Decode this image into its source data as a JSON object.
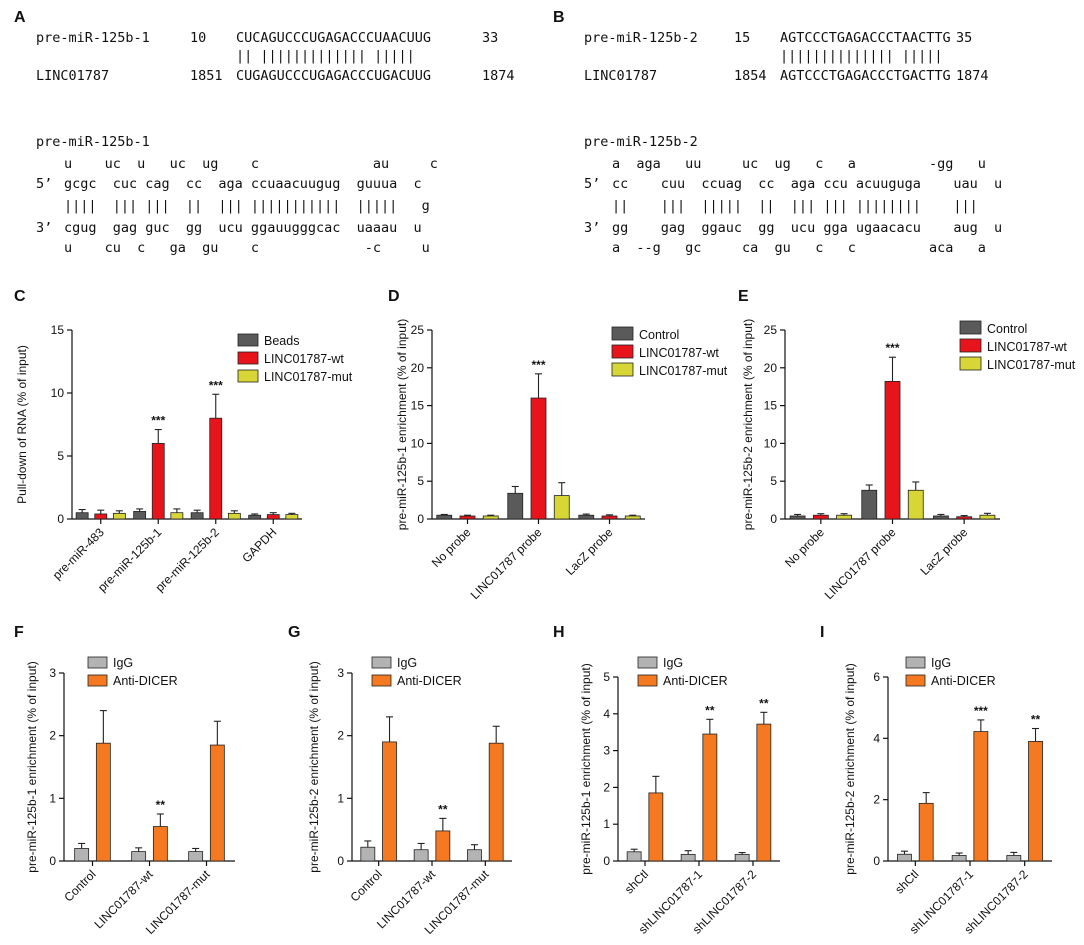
{
  "panel_labels": [
    "A",
    "B",
    "C",
    "D",
    "E",
    "F",
    "G",
    "H",
    "I"
  ],
  "sequences": {
    "A": {
      "name1": "pre-miR-125b-1",
      "start1": "10",
      "seq1": "CUCAGUCCCUGAGACCCUAACUUG",
      "end1": "33",
      "bars": "|| ||||||||||||| |||||",
      "name2": "LINC01787",
      "start2": "1851",
      "seq2": "CUGAGUCCCUGAGACCCUGACUUG",
      "end2": "1874"
    },
    "B": {
      "name1": "pre-miR-125b-2",
      "start1": "15",
      "seq1": "AGTCCCTGAGACCCTAACTTG",
      "end1": "35",
      "bars": "|||||||||||||| |||||",
      "name2": "LINC01787",
      "start2": "1854",
      "seq2": "AGTCCCTGAGACCCTGACTTG",
      "end2": "1874"
    }
  },
  "hairpins": {
    "A": {
      "title": "pre-miR-125b-1",
      "l1": "u    uc  u   uc  ug    c              au     c",
      "l2": "gcgc  cuc cag  cc  aga ccuaacuugug  guuua  c",
      "l3": "||||  ||| |||  ||  ||| |||||||||||  |||||   g",
      "l4": "cgug  gag guc  gg  ucu ggauugggcac  uaaau  u",
      "l5": "u    cu  c   ga  gu    c             -c     u",
      "p5": "5’",
      "p3": "3’"
    },
    "B": {
      "title": "pre-miR-125b-2",
      "l1": "a  aga   uu     uc  ug   c   a         -gg   u",
      "l2": "cc    cuu  ccuag  cc  aga ccu acuuguga    uau  u",
      "l3": "||    |||  |||||  ||  ||| ||| ||||||||    |||",
      "l4": "gg    gag  ggauc  gg  ucu gga ugaacacu    aug  u",
      "l5": "a  --g   gc     ca  gu   c   c         aca   a",
      "p5": "5’",
      "p3": "3’"
    }
  },
  "colors": {
    "gray": "#5a5a5a",
    "red": "#e8141c",
    "olive": "#d8d636",
    "lightgray": "#b3b3b3",
    "orange": "#f57921"
  },
  "chart_data": [
    {
      "panel": "C",
      "type": "bar",
      "ylabel": "Pull-down of RNA (% of input)",
      "ylim": [
        0,
        15
      ],
      "yticks": [
        0,
        5,
        10,
        15
      ],
      "categories": [
        "pre-miR-483",
        "pre-miR-125b-1",
        "pre-miR-125b-2",
        "GAPDH"
      ],
      "series": [
        {
          "name": "Beads",
          "color": "#5a5a5a",
          "values": [
            0.5,
            0.6,
            0.5,
            0.3
          ],
          "errors": [
            0.25,
            0.2,
            0.2,
            0.1
          ]
        },
        {
          "name": "LINC01787-wt",
          "color": "#e8141c",
          "values": [
            0.4,
            6.0,
            8.0,
            0.35
          ],
          "errors": [
            0.3,
            1.1,
            1.9,
            0.15
          ]
        },
        {
          "name": "LINC01787-mut",
          "color": "#d8d636",
          "values": [
            0.45,
            0.5,
            0.45,
            0.35
          ],
          "errors": [
            0.2,
            0.3,
            0.2,
            0.1
          ]
        }
      ],
      "annotations": [
        {
          "cat": 1,
          "series": 1,
          "text": "***"
        },
        {
          "cat": 2,
          "series": 1,
          "text": "***"
        }
      ]
    },
    {
      "panel": "D",
      "type": "bar",
      "ylabel": "pre-miR-125b-1 enrichment (% of input)",
      "ylim": [
        0,
        25
      ],
      "yticks": [
        0,
        5,
        10,
        15,
        20,
        25
      ],
      "categories": [
        "No probe",
        "LINC01787 probe",
        "LacZ probe"
      ],
      "series": [
        {
          "name": "Control",
          "color": "#5a5a5a",
          "values": [
            0.5,
            3.4,
            0.5
          ],
          "errors": [
            0.1,
            0.9,
            0.15
          ]
        },
        {
          "name": "LINC01787-wt",
          "color": "#e8141c",
          "values": [
            0.4,
            16.0,
            0.4
          ],
          "errors": [
            0.1,
            3.2,
            0.15
          ]
        },
        {
          "name": "LINC01787-mut",
          "color": "#d8d636",
          "values": [
            0.4,
            3.1,
            0.4
          ],
          "errors": [
            0.1,
            1.7,
            0.1
          ]
        }
      ],
      "annotations": [
        {
          "cat": 1,
          "series": 1,
          "text": "***"
        }
      ]
    },
    {
      "panel": "E",
      "type": "bar",
      "ylabel": "pre-miR-125b-2 enrichment (% of input)",
      "ylim": [
        0,
        25
      ],
      "yticks": [
        0,
        5,
        10,
        15,
        20,
        25
      ],
      "categories": [
        "No probe",
        "LINC01787 probe",
        "LacZ probe"
      ],
      "series": [
        {
          "name": "Control",
          "color": "#5a5a5a",
          "values": [
            0.4,
            3.8,
            0.4
          ],
          "errors": [
            0.2,
            0.7,
            0.2
          ]
        },
        {
          "name": "LINC01787-wt",
          "color": "#e8141c",
          "values": [
            0.5,
            18.2,
            0.3
          ],
          "errors": [
            0.2,
            3.2,
            0.15
          ]
        },
        {
          "name": "LINC01787-mut",
          "color": "#d8d636",
          "values": [
            0.5,
            3.8,
            0.5
          ],
          "errors": [
            0.2,
            1.1,
            0.25
          ]
        }
      ],
      "annotations": [
        {
          "cat": 1,
          "series": 1,
          "text": "***"
        }
      ]
    },
    {
      "panel": "F",
      "type": "bar",
      "ylabel": "pre-miR-125b-1 enrichment (% of input)",
      "ylim": [
        0,
        3
      ],
      "yticks": [
        0,
        1,
        2,
        3
      ],
      "categories": [
        "Control",
        "LINC01787-wt",
        "LINC01787-mut"
      ],
      "series": [
        {
          "name": "IgG",
          "color": "#b3b3b3",
          "values": [
            0.2,
            0.15,
            0.15
          ],
          "errors": [
            0.08,
            0.06,
            0.05
          ]
        },
        {
          "name": "Anti-DICER",
          "color": "#f57921",
          "values": [
            1.88,
            0.55,
            1.85
          ],
          "errors": [
            0.52,
            0.2,
            0.38
          ]
        }
      ],
      "annotations": [
        {
          "cat": 1,
          "series": 1,
          "text": "**"
        }
      ]
    },
    {
      "panel": "G",
      "type": "bar",
      "ylabel": "pre-miR-125b-2 enrichment (% of input)",
      "ylim": [
        0,
        3
      ],
      "yticks": [
        0,
        1,
        2,
        3
      ],
      "categories": [
        "Control",
        "LINC01787-wt",
        "LINC01787-mut"
      ],
      "series": [
        {
          "name": "IgG",
          "color": "#b3b3b3",
          "values": [
            0.22,
            0.18,
            0.18
          ],
          "errors": [
            0.1,
            0.1,
            0.08
          ]
        },
        {
          "name": "Anti-DICER",
          "color": "#f57921",
          "values": [
            1.9,
            0.48,
            1.88
          ],
          "errors": [
            0.4,
            0.2,
            0.27
          ]
        }
      ],
      "annotations": [
        {
          "cat": 1,
          "series": 1,
          "text": "**"
        }
      ]
    },
    {
      "panel": "H",
      "type": "bar",
      "ylabel": "pre-miR-125b-1 enrichment (% of input)",
      "ylim": [
        0,
        5
      ],
      "yticks": [
        0,
        1,
        2,
        3,
        4,
        5
      ],
      "categories": [
        "shCtl",
        "shLINC01787-1",
        "shLINC01787-2"
      ],
      "series": [
        {
          "name": "IgG",
          "color": "#b3b3b3",
          "values": [
            0.25,
            0.18,
            0.18
          ],
          "errors": [
            0.07,
            0.1,
            0.05
          ]
        },
        {
          "name": "Anti-DICER",
          "color": "#f57921",
          "values": [
            1.85,
            3.45,
            3.72
          ],
          "errors": [
            0.45,
            0.4,
            0.32
          ]
        }
      ],
      "annotations": [
        {
          "cat": 1,
          "series": 1,
          "text": "**"
        },
        {
          "cat": 2,
          "series": 1,
          "text": "**"
        }
      ]
    },
    {
      "panel": "I",
      "type": "bar",
      "ylabel": "pre-miR-125b-2 enrichment (% of input)",
      "ylim": [
        0,
        6
      ],
      "yticks": [
        0,
        2,
        4,
        6
      ],
      "categories": [
        "shCtl",
        "shLINC01787-1",
        "shLINC01787-2"
      ],
      "series": [
        {
          "name": "IgG",
          "color": "#b3b3b3",
          "values": [
            0.22,
            0.18,
            0.18
          ],
          "errors": [
            0.1,
            0.08,
            0.1
          ]
        },
        {
          "name": "Anti-DICER",
          "color": "#f57921",
          "values": [
            1.88,
            4.22,
            3.9
          ],
          "errors": [
            0.35,
            0.38,
            0.42
          ]
        }
      ],
      "annotations": [
        {
          "cat": 1,
          "series": 1,
          "text": "***"
        },
        {
          "cat": 2,
          "series": 1,
          "text": "**"
        }
      ]
    }
  ]
}
